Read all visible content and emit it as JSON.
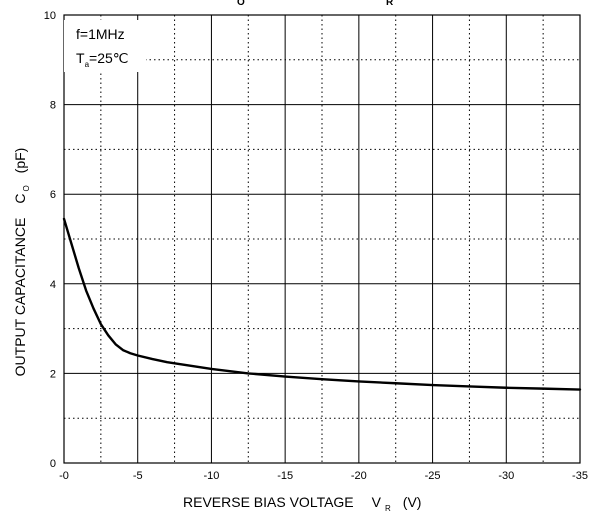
{
  "chart_data": {
    "type": "line",
    "xlabel": "REVERSE BIAS VOLTAGE",
    "xlabel_symbol": "V",
    "xlabel_subscript": "R",
    "xlabel_unit": "(V)",
    "ylabel": "OUTPUT CAPACITANCE",
    "ylabel_symbol": "C",
    "ylabel_subscript": "O",
    "ylabel_unit": "(pF)",
    "xlim": [
      0,
      -35
    ],
    "ylim": [
      0,
      10
    ],
    "x_ticks": [
      "-0",
      "-5",
      "-10",
      "-15",
      "-20",
      "-25",
      "-30",
      "-35"
    ],
    "y_ticks": [
      "0",
      "2",
      "4",
      "6",
      "8",
      "10"
    ],
    "grid": "major solid, minor dotted",
    "annotation": {
      "line1": "f=1MHz",
      "line2_symbol": "T",
      "line2_subscript": "a",
      "line2_value": "=25℃"
    },
    "top_cut_text": [
      "O",
      "R"
    ],
    "series": [
      {
        "x": [
          0,
          -0.5,
          -1,
          -1.5,
          -2,
          -2.5,
          -3,
          -3.5,
          -4,
          -4.5,
          -5,
          -6,
          -7,
          -8,
          -10,
          -12.5,
          -15,
          -17.5,
          -20,
          -22.5,
          -25,
          -27.5,
          -30,
          -32.5,
          -35
        ],
        "y": [
          5.45,
          4.9,
          4.35,
          3.85,
          3.45,
          3.1,
          2.85,
          2.65,
          2.52,
          2.45,
          2.4,
          2.32,
          2.25,
          2.2,
          2.1,
          2.0,
          1.93,
          1.87,
          1.82,
          1.78,
          1.74,
          1.71,
          1.68,
          1.66,
          1.64
        ]
      }
    ]
  }
}
